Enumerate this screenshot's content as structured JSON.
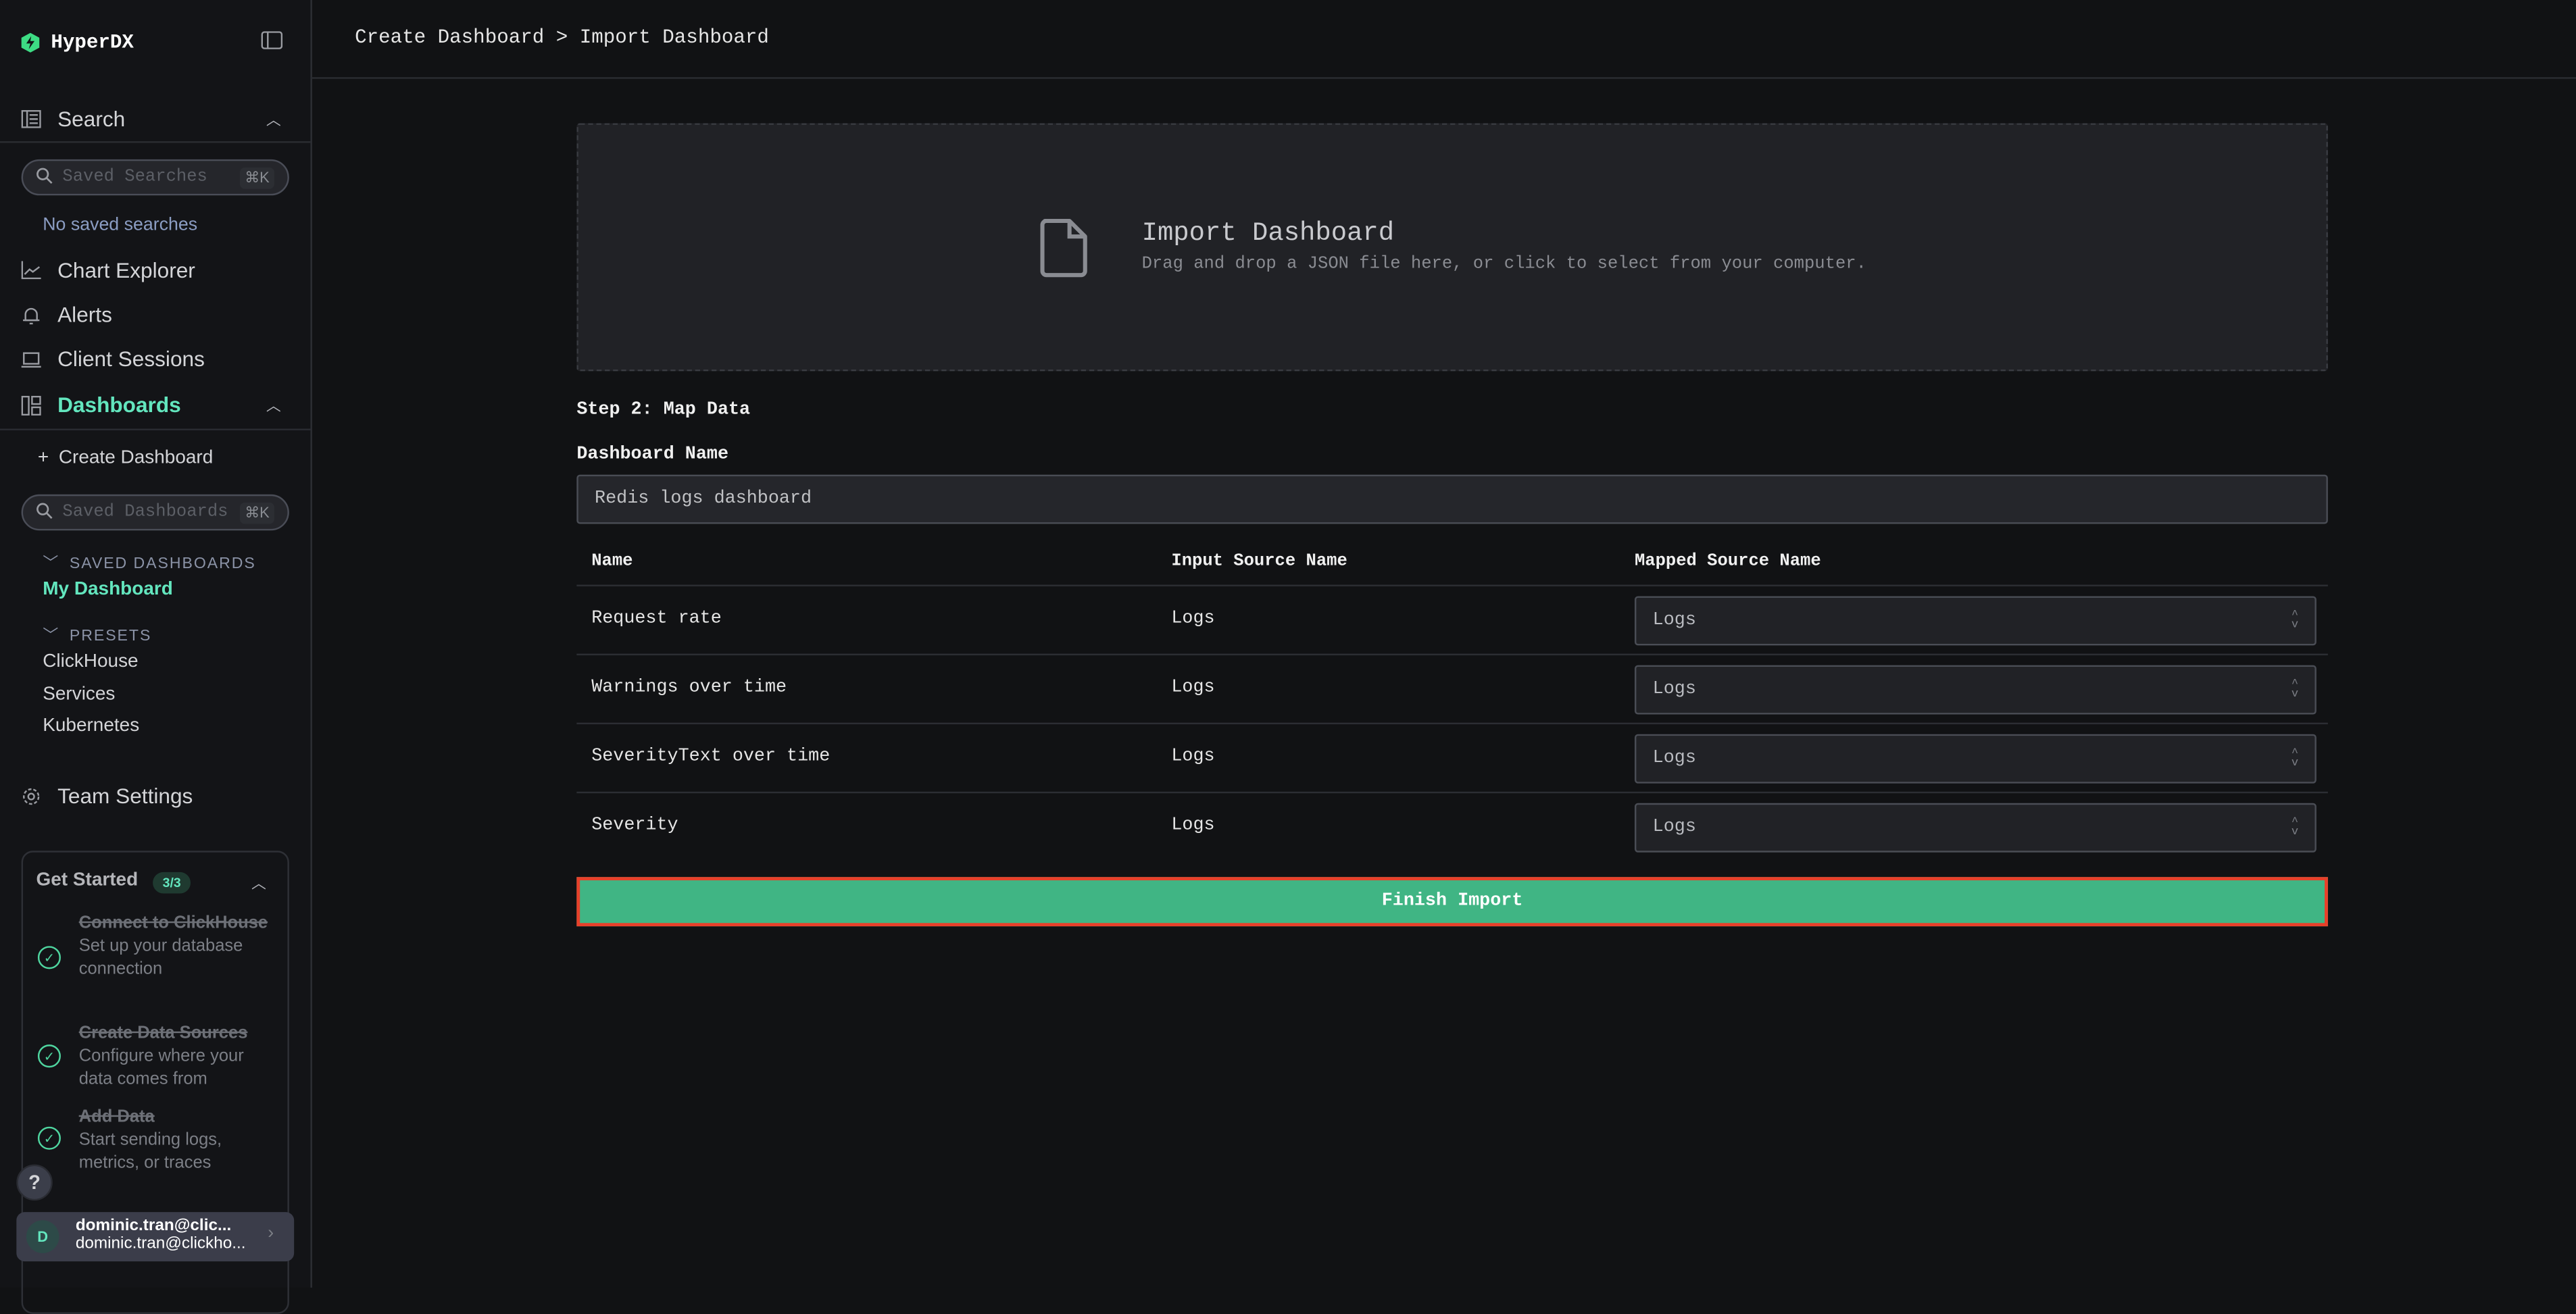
{
  "app": {
    "name": "HyperDX",
    "accent": "#63e6be",
    "logo_color": "#3ddc84"
  },
  "sidebar": {
    "search": {
      "label": "Search",
      "placeholder": "Saved Searches",
      "shortcut": "⌘K",
      "empty": "No saved searches"
    },
    "nav": [
      {
        "label": "Chart Explorer",
        "icon": "chart-line-icon"
      },
      {
        "label": "Alerts",
        "icon": "bell-icon"
      },
      {
        "label": "Client Sessions",
        "icon": "laptop-icon"
      }
    ],
    "dashboards": {
      "label": "Dashboards",
      "create": "Create Dashboard",
      "placeholder": "Saved Dashboards",
      "shortcut": "⌘K",
      "saved_header": "SAVED DASHBOARDS",
      "saved": [
        "My Dashboard"
      ],
      "presets_header": "PRESETS",
      "presets": [
        "ClickHouse",
        "Services",
        "Kubernetes"
      ]
    },
    "team_settings": "Team Settings",
    "get_started": {
      "title": "Get Started",
      "badge": "3/3",
      "steps": [
        {
          "title": "Connect to ClickHouse",
          "desc": "Set up your database connection",
          "done": true
        },
        {
          "title": "Create Data Sources",
          "desc": "Configure where your data comes from",
          "done": true
        },
        {
          "title": "Add Data",
          "desc": "Start sending logs, metrics, or traces",
          "done": true
        }
      ]
    },
    "help": "?",
    "user": {
      "initial": "D",
      "name": "dominic.tran@clic...",
      "email": "dominic.tran@clickho..."
    }
  },
  "header": {
    "breadcrumb": "Create Dashboard > Import Dashboard"
  },
  "dropzone": {
    "title": "Import Dashboard",
    "subtitle": "Drag and drop a JSON file here, or click to select from your computer."
  },
  "form": {
    "step_label": "Step 2: Map Data",
    "name_label": "Dashboard Name",
    "name_value": "Redis logs dashboard",
    "columns": [
      "Name",
      "Input Source Name",
      "Mapped Source Name"
    ],
    "rows": [
      {
        "name": "Request rate",
        "input": "Logs",
        "mapped": "Logs"
      },
      {
        "name": "Warnings over time",
        "input": "Logs",
        "mapped": "Logs"
      },
      {
        "name": "SeverityText over time",
        "input": "Logs",
        "mapped": "Logs"
      },
      {
        "name": "Severity",
        "input": "Logs",
        "mapped": "Logs"
      }
    ],
    "submit": "Finish Import"
  }
}
